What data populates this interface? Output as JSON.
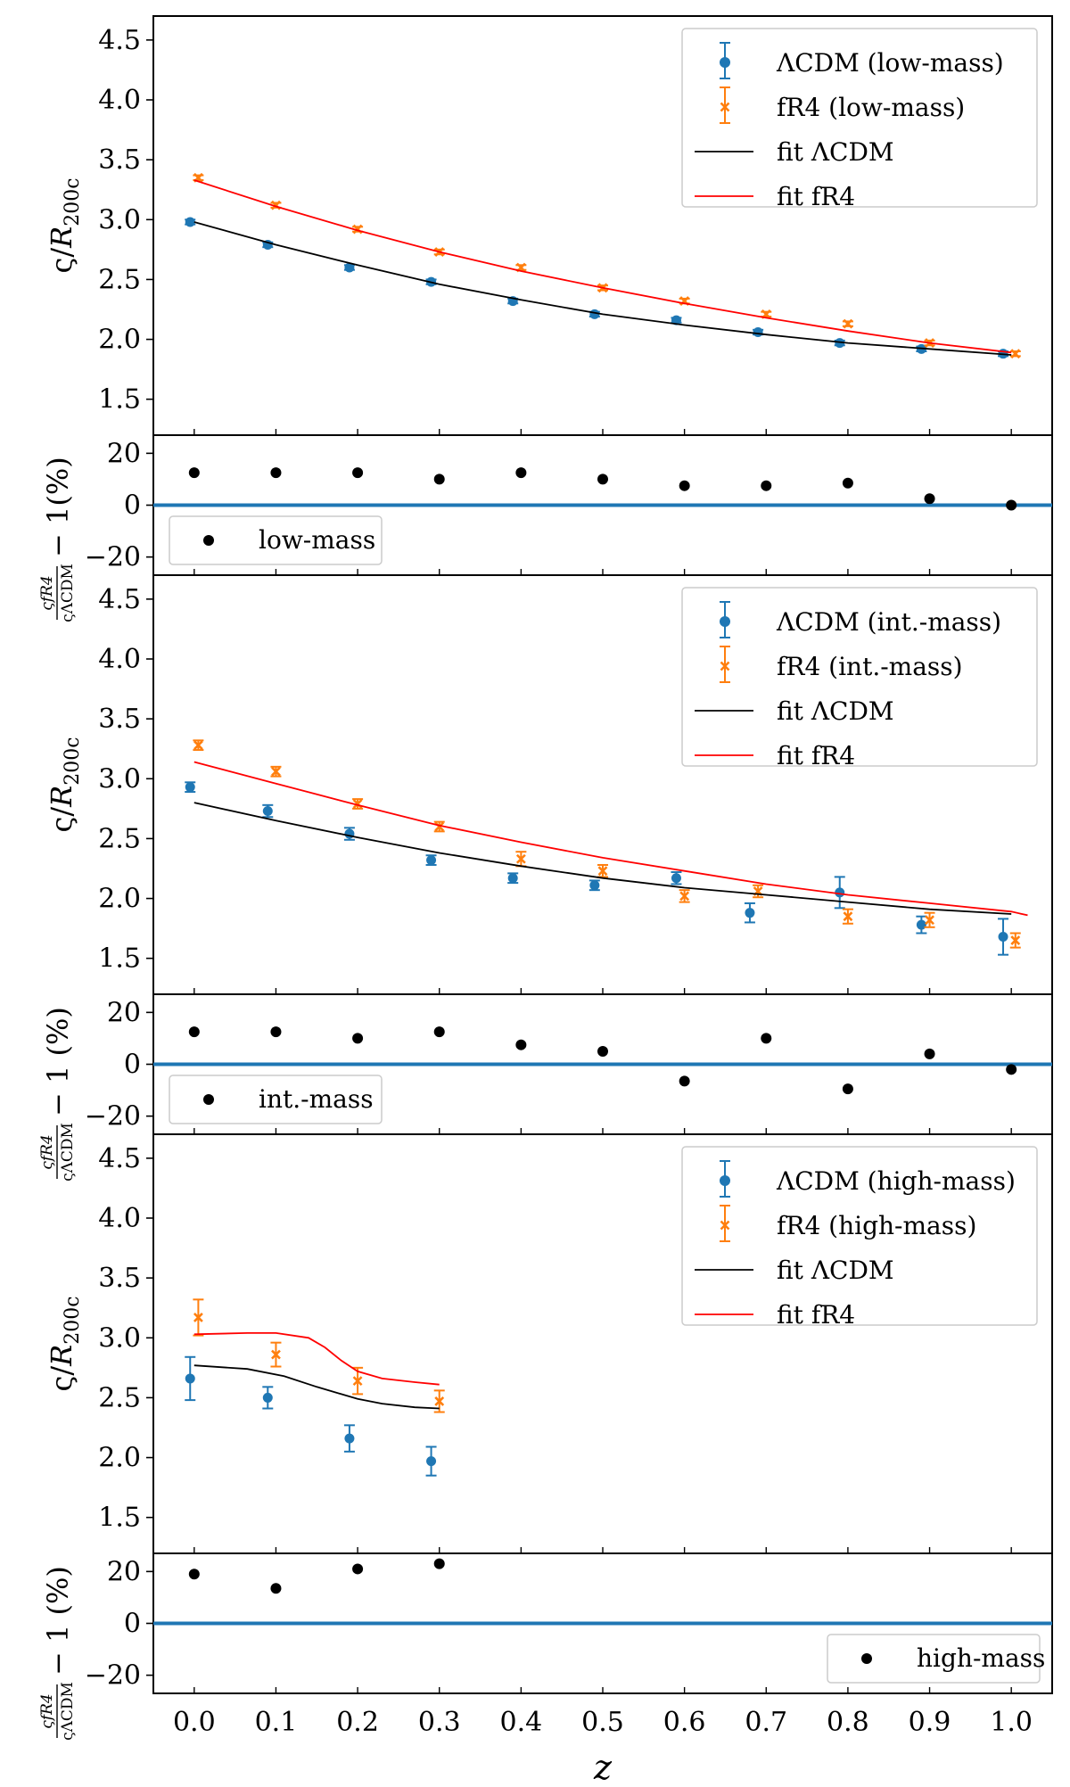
{
  "colors": {
    "lcdm": "#1f77b4",
    "fr4": "#ff7f0e",
    "fit_lcdm": "#000000",
    "fit_fr4": "#ff0000",
    "zero_line": "#1f77b4",
    "ratio_points": "#000000"
  },
  "x_ticks": [
    "0.0",
    "0.1",
    "0.2",
    "0.3",
    "0.4",
    "0.5",
    "0.6",
    "0.7",
    "0.8",
    "0.9",
    "1.0"
  ],
  "chart_data": [
    {
      "type": "scatter",
      "panel": "main-low",
      "ylabel": "ς/R200c",
      "xlim": [
        -0.05,
        1.05
      ],
      "ylim": [
        1.2,
        4.7
      ],
      "yticks": [
        "1.5",
        "2.0",
        "2.5",
        "3.0",
        "3.5",
        "4.0",
        "4.5"
      ],
      "legend_position": "top-right",
      "legend": [
        "ΛCDM (low-mass)",
        "fR4 (low-mass)",
        "fit ΛCDM",
        "fit fR4"
      ],
      "series": [
        {
          "name": "ΛCDM (low-mass)",
          "kind": "errorbar",
          "marker": "o",
          "x": [
            -0.005,
            0.09,
            0.19,
            0.29,
            0.39,
            0.49,
            0.59,
            0.69,
            0.79,
            0.89,
            0.99
          ],
          "y": [
            2.98,
            2.79,
            2.6,
            2.48,
            2.32,
            2.21,
            2.16,
            2.06,
            1.97,
            1.92,
            1.88
          ],
          "err": [
            0.02,
            0.02,
            0.02,
            0.02,
            0.02,
            0.02,
            0.02,
            0.02,
            0.02,
            0.02,
            0.02
          ]
        },
        {
          "name": "fR4 (low-mass)",
          "kind": "errorbar",
          "marker": "x",
          "x": [
            0.005,
            0.1,
            0.2,
            0.3,
            0.4,
            0.5,
            0.6,
            0.7,
            0.8,
            0.9,
            1.005
          ],
          "y": [
            3.35,
            3.12,
            2.92,
            2.73,
            2.6,
            2.43,
            2.32,
            2.21,
            2.13,
            1.97,
            1.88
          ],
          "err": [
            0.02,
            0.02,
            0.02,
            0.02,
            0.02,
            0.02,
            0.02,
            0.02,
            0.02,
            0.02,
            0.02
          ]
        },
        {
          "name": "fit ΛCDM",
          "kind": "line",
          "x": [
            0,
            0.1,
            0.2,
            0.3,
            0.4,
            0.5,
            0.6,
            0.7,
            0.8,
            0.9,
            1.0
          ],
          "y": [
            2.98,
            2.79,
            2.62,
            2.46,
            2.33,
            2.21,
            2.12,
            2.04,
            1.97,
            1.92,
            1.87
          ]
        },
        {
          "name": "fit fR4",
          "kind": "line",
          "x": [
            0,
            0.1,
            0.2,
            0.3,
            0.4,
            0.5,
            0.6,
            0.7,
            0.8,
            0.9,
            1.0
          ],
          "y": [
            3.33,
            3.11,
            2.91,
            2.73,
            2.57,
            2.43,
            2.3,
            2.18,
            2.07,
            1.97,
            1.89
          ]
        }
      ]
    },
    {
      "type": "scatter",
      "panel": "ratio-low",
      "ylabel": "ςfR4/ςΛCDM − 1(%)",
      "xlim": [
        -0.05,
        1.05
      ],
      "ylim": [
        -27,
        27
      ],
      "yticks": [
        "−20",
        "0",
        "20"
      ],
      "legend_position": "bottom-left",
      "legend": [
        "low-mass"
      ],
      "series": [
        {
          "name": "low-mass",
          "x": [
            0,
            0.1,
            0.2,
            0.3,
            0.4,
            0.5,
            0.6,
            0.7,
            0.8,
            0.9,
            1.0
          ],
          "y": [
            12.5,
            12.5,
            12.5,
            10,
            12.5,
            10,
            7.5,
            7.5,
            8.5,
            2.5,
            0
          ]
        }
      ]
    },
    {
      "type": "scatter",
      "panel": "main-int",
      "ylabel": "ς/R200c",
      "xlim": [
        -0.05,
        1.05
      ],
      "ylim": [
        1.2,
        4.7
      ],
      "yticks": [
        "1.5",
        "2.0",
        "2.5",
        "3.0",
        "3.5",
        "4.0",
        "4.5"
      ],
      "legend_position": "top-right",
      "legend": [
        "ΛCDM (int.-mass)",
        "fR4 (int.-mass)",
        "fit ΛCDM",
        "fit fR4"
      ],
      "series": [
        {
          "name": "ΛCDM (int.-mass)",
          "kind": "errorbar",
          "marker": "o",
          "x": [
            -0.005,
            0.09,
            0.19,
            0.29,
            0.39,
            0.49,
            0.59,
            0.68,
            0.79,
            0.89,
            0.99
          ],
          "y": [
            2.93,
            2.73,
            2.54,
            2.32,
            2.17,
            2.11,
            2.17,
            1.88,
            2.05,
            1.78,
            1.68
          ],
          "err": [
            0.04,
            0.05,
            0.05,
            0.04,
            0.04,
            0.04,
            0.05,
            0.08,
            0.13,
            0.07,
            0.15
          ]
        },
        {
          "name": "fR4 (int.-mass)",
          "kind": "errorbar",
          "marker": "x",
          "x": [
            0.005,
            0.1,
            0.2,
            0.3,
            0.4,
            0.5,
            0.6,
            0.69,
            0.8,
            0.9,
            1.005
          ],
          "y": [
            3.28,
            3.06,
            2.79,
            2.6,
            2.33,
            2.23,
            2.02,
            2.06,
            1.85,
            1.82,
            1.65
          ],
          "err": [
            0.04,
            0.04,
            0.04,
            0.04,
            0.06,
            0.05,
            0.05,
            0.05,
            0.06,
            0.06,
            0.06
          ]
        },
        {
          "name": "fit ΛCDM",
          "kind": "line",
          "x": [
            0,
            0.1,
            0.2,
            0.3,
            0.4,
            0.5,
            0.6,
            0.7,
            0.8,
            0.9,
            1.0
          ],
          "y": [
            2.8,
            2.65,
            2.51,
            2.38,
            2.27,
            2.17,
            2.09,
            2.03,
            1.97,
            1.91,
            1.87
          ]
        },
        {
          "name": "fit fR4",
          "kind": "line",
          "x": [
            0,
            0.1,
            0.2,
            0.3,
            0.4,
            0.5,
            0.6,
            0.7,
            0.8,
            0.9,
            1.0,
            1.02
          ],
          "y": [
            3.14,
            2.96,
            2.78,
            2.61,
            2.47,
            2.34,
            2.23,
            2.12,
            2.03,
            1.96,
            1.89,
            1.86
          ]
        }
      ]
    },
    {
      "type": "scatter",
      "panel": "ratio-int",
      "ylabel": "ςfR4/ςΛCDM − 1 (%)",
      "xlim": [
        -0.05,
        1.05
      ],
      "ylim": [
        -27,
        27
      ],
      "yticks": [
        "−20",
        "0",
        "20"
      ],
      "legend_position": "bottom-left",
      "legend": [
        "int.-mass"
      ],
      "series": [
        {
          "name": "int.-mass",
          "x": [
            0,
            0.1,
            0.2,
            0.3,
            0.4,
            0.5,
            0.6,
            0.7,
            0.8,
            0.9,
            1.0
          ],
          "y": [
            12.5,
            12.5,
            10,
            12.5,
            7.5,
            5,
            -6.5,
            10,
            -9.5,
            4,
            -2
          ]
        }
      ]
    },
    {
      "type": "scatter",
      "panel": "main-high",
      "ylabel": "ς/R200c",
      "xlim": [
        -0.05,
        1.05
      ],
      "ylim": [
        1.2,
        4.7
      ],
      "yticks": [
        "1.5",
        "2.0",
        "2.5",
        "3.0",
        "3.5",
        "4.0",
        "4.5"
      ],
      "legend_position": "top-right",
      "legend": [
        "ΛCDM (high-mass)",
        "fR4 (high-mass)",
        "fit ΛCDM",
        "fit fR4"
      ],
      "series": [
        {
          "name": "ΛCDM (high-mass)",
          "kind": "errorbar",
          "marker": "o",
          "x": [
            -0.005,
            0.09,
            0.19,
            0.29
          ],
          "y": [
            2.66,
            2.5,
            2.16,
            1.97
          ],
          "err": [
            0.18,
            0.09,
            0.11,
            0.12
          ]
        },
        {
          "name": "fR4 (high-mass)",
          "kind": "errorbar",
          "marker": "x",
          "x": [
            0.005,
            0.1,
            0.2,
            0.3
          ],
          "y": [
            3.17,
            2.86,
            2.64,
            2.47
          ],
          "err": [
            0.15,
            0.1,
            0.11,
            0.09
          ]
        },
        {
          "name": "fit ΛCDM",
          "kind": "line",
          "x": [
            0,
            0.065,
            0.11,
            0.15,
            0.18,
            0.2,
            0.23,
            0.27,
            0.3
          ],
          "y": [
            2.77,
            2.74,
            2.68,
            2.59,
            2.53,
            2.49,
            2.45,
            2.42,
            2.41
          ]
        },
        {
          "name": "fit fR4",
          "kind": "line",
          "x": [
            0,
            0.065,
            0.1,
            0.14,
            0.16,
            0.18,
            0.2,
            0.23,
            0.27,
            0.3
          ],
          "y": [
            3.03,
            3.04,
            3.04,
            3.0,
            2.92,
            2.81,
            2.72,
            2.66,
            2.63,
            2.61
          ]
        }
      ]
    },
    {
      "type": "scatter",
      "panel": "ratio-high",
      "ylabel": "ςfR4/ςΛCDM − 1 (%)",
      "xlim": [
        -0.05,
        1.05
      ],
      "ylim": [
        -27,
        27
      ],
      "yticks": [
        "−20",
        "0",
        "20"
      ],
      "legend_position": "bottom-right",
      "legend": [
        "high-mass"
      ],
      "xlabel": "z",
      "series": [
        {
          "name": "high-mass",
          "x": [
            0,
            0.1,
            0.2,
            0.3
          ],
          "y": [
            19,
            13.5,
            21,
            23
          ]
        }
      ]
    }
  ]
}
